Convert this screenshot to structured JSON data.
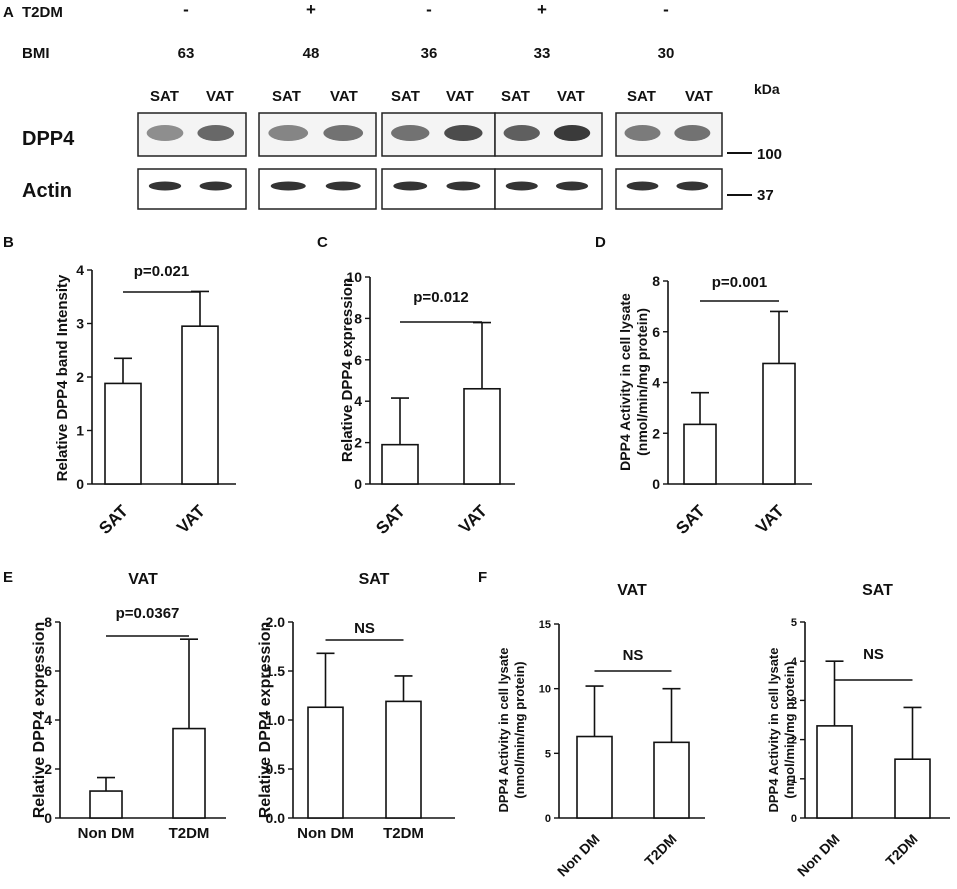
{
  "panel_letters": [
    "A",
    "B",
    "C",
    "D",
    "E",
    "F"
  ],
  "blot": {
    "row_labels": {
      "t2dm": "T2DM",
      "bmi": "BMI"
    },
    "groups": [
      {
        "t2dm": "-",
        "bmi": "63"
      },
      {
        "t2dm": "+",
        "bmi": "48"
      },
      {
        "t2dm": "-",
        "bmi": "36"
      },
      {
        "t2dm": "+",
        "bmi": "33"
      },
      {
        "t2dm": "-",
        "bmi": "30"
      }
    ],
    "lane_label_sat": "SAT",
    "lane_label_vat": "VAT",
    "kda_label": "kDa",
    "bands": [
      {
        "label": "DPP4",
        "marker": "100"
      },
      {
        "label": "Actin",
        "marker": "37"
      }
    ],
    "colors": {
      "band": "#2b2b2b",
      "background": "#ffffff"
    }
  },
  "chart_data": [
    {
      "panel": "B",
      "type": "bar",
      "title": "",
      "ylabel": "Relative DPP4 band Intensity",
      "categories": [
        "SAT",
        "VAT"
      ],
      "values": [
        1.88,
        2.95
      ],
      "errors": [
        0.47,
        0.65
      ],
      "ylim": [
        0,
        4
      ],
      "yticks": [
        "0",
        "1",
        "2",
        "3",
        "4"
      ],
      "annotation": "p=0.021"
    },
    {
      "panel": "C",
      "type": "bar",
      "title": "",
      "ylabel": "Relative DPP4 expression",
      "categories": [
        "SAT",
        "VAT"
      ],
      "values": [
        1.9,
        4.6
      ],
      "errors": [
        2.25,
        3.2
      ],
      "ylim": [
        0,
        10
      ],
      "yticks": [
        "0",
        "2",
        "4",
        "6",
        "8",
        "10"
      ],
      "annotation": "p=0.012"
    },
    {
      "panel": "D",
      "type": "bar",
      "title": "",
      "ylabel": "DPP4 Activity in cell lysate",
      "ylabel2": "(nmol/min/mg protein)",
      "categories": [
        "SAT",
        "VAT"
      ],
      "values": [
        2.35,
        4.75
      ],
      "errors": [
        1.25,
        2.05
      ],
      "ylim": [
        0,
        8
      ],
      "yticks": [
        "0",
        "2",
        "4",
        "6",
        "8"
      ],
      "annotation": "p=0.001"
    },
    {
      "panel": "E",
      "type": "bar",
      "title": "VAT",
      "ylabel": "Relative DPP4 expression",
      "categories": [
        "Non DM",
        "T2DM"
      ],
      "values": [
        1.1,
        3.65
      ],
      "errors": [
        0.55,
        3.65
      ],
      "ylim": [
        0,
        8
      ],
      "yticks": [
        "0",
        "2",
        "4",
        "6",
        "8"
      ],
      "annotation": "p=0.0367"
    },
    {
      "panel": "E2",
      "type": "bar",
      "title": "SAT",
      "ylabel": "Relative DPP4 expression",
      "categories": [
        "Non DM",
        "T2DM"
      ],
      "values": [
        1.13,
        1.19
      ],
      "errors": [
        0.55,
        0.26
      ],
      "ylim": [
        0,
        2
      ],
      "yticks": [
        "0.0",
        "0.5",
        "1.0",
        "1.5",
        "2.0"
      ],
      "annotation": "NS"
    },
    {
      "panel": "F",
      "type": "bar",
      "title": "VAT",
      "ylabel": "DPP4 Activity in cell lysate",
      "ylabel2": "(nmol/min/mg protein)",
      "categories": [
        "Non DM",
        "T2DM"
      ],
      "values": [
        6.3,
        5.85
      ],
      "errors": [
        3.9,
        4.15
      ],
      "ylim": [
        0,
        15
      ],
      "yticks": [
        "0",
        "5",
        "10",
        "15"
      ],
      "annotation": "NS"
    },
    {
      "panel": "F2",
      "type": "bar",
      "title": "SAT",
      "ylabel": "DPP4 Activity in cell lysate",
      "ylabel2": "(nmol/min/mg protein)",
      "categories": [
        "Non DM",
        "T2DM"
      ],
      "values": [
        2.35,
        1.5
      ],
      "errors": [
        1.65,
        1.32
      ],
      "ylim": [
        0,
        5
      ],
      "yticks": [
        "0",
        "1",
        "2",
        "3",
        "4",
        "5"
      ],
      "annotation": "NS"
    }
  ]
}
